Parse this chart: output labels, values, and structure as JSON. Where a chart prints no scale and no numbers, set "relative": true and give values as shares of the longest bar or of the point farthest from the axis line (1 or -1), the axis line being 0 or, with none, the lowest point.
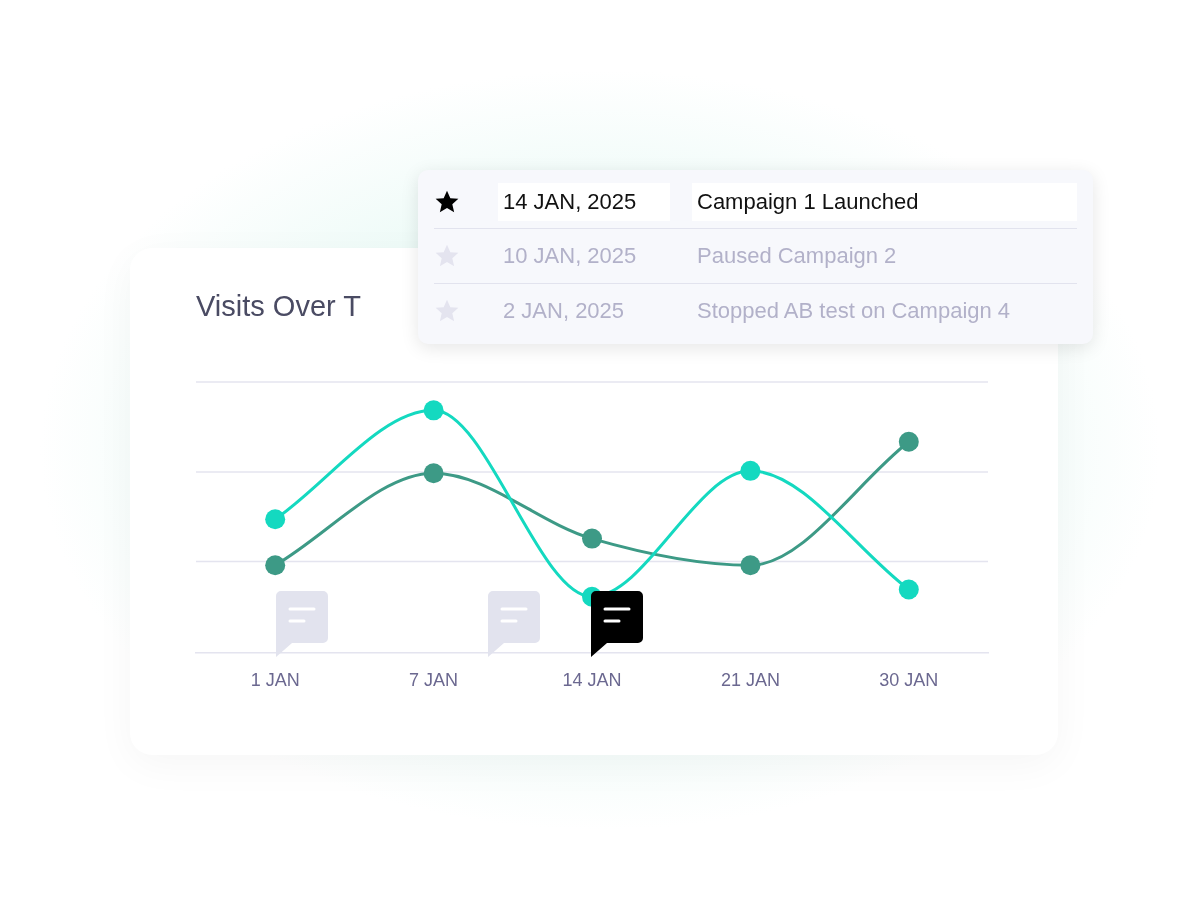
{
  "chart_data": {
    "type": "line",
    "title": "Visits Over T",
    "relative": true,
    "legend": false,
    "ref_lines": [
      {
        "axis": "y",
        "value": 0.375,
        "color": "#e4e4ef"
      },
      {
        "axis": "y",
        "value": 0.745,
        "color": "#e4e4ef"
      },
      {
        "axis": "y",
        "value": 1.117,
        "color": "#e4e4ef"
      }
    ],
    "marker": "circle",
    "categories": [
      "1 JAN",
      "7 JAN",
      "14 JAN",
      "21 JAN",
      "30 JAN"
    ],
    "series": [
      {
        "color": "#14d9c0",
        "values": [
          0.55,
          1,
          0.23,
          0.75,
          0.26
        ]
      },
      {
        "color": "#3d9a86",
        "values": [
          0.36,
          0.74,
          0.47,
          0.36,
          0.87
        ]
      }
    ],
    "annotations": [
      "14 JAN, 2025",
      "Campaign 1 Launched",
      "10 JAN, 2025",
      "Paused Campaign 2",
      "2 JAN, 2025",
      "Stopped AB test on Campaign 4"
    ]
  }
}
